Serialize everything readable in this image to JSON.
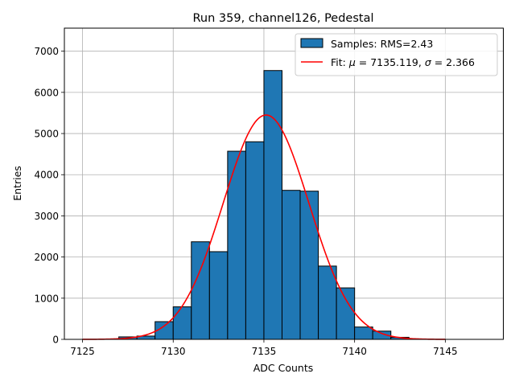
{
  "chart_data": {
    "type": "bar",
    "title": "Run 359, channel126, Pedestal",
    "xlabel": "ADC Counts",
    "ylabel": "Entries",
    "xlim": [
      7124,
      7148.2
    ],
    "ylim": [
      0,
      7560
    ],
    "xticks": [
      7125,
      7130,
      7135,
      7140,
      7145
    ],
    "yticks": [
      0,
      1000,
      2000,
      3000,
      4000,
      5000,
      6000,
      7000
    ],
    "grid": true,
    "legend_position": "top-right",
    "bins": [
      {
        "x0": 7127,
        "x1": 7128,
        "count": 60
      },
      {
        "x0": 7128,
        "x1": 7129,
        "count": 80
      },
      {
        "x0": 7129,
        "x1": 7130,
        "count": 430
      },
      {
        "x0": 7130,
        "x1": 7131,
        "count": 790
      },
      {
        "x0": 7131,
        "x1": 7132,
        "count": 2370
      },
      {
        "x0": 7132,
        "x1": 7133,
        "count": 2130
      },
      {
        "x0": 7133,
        "x1": 7134,
        "count": 4570
      },
      {
        "x0": 7134,
        "x1": 7135,
        "count": 4800
      },
      {
        "x0": 7135,
        "x1": 7136,
        "count": 6530
      },
      {
        "x0": 7136,
        "x1": 7137,
        "count": 3620
      },
      {
        "x0": 7137,
        "x1": 7138,
        "count": 3600
      },
      {
        "x0": 7138,
        "x1": 7139,
        "count": 1780
      },
      {
        "x0": 7139,
        "x1": 7140,
        "count": 1250
      },
      {
        "x0": 7140,
        "x1": 7141,
        "count": 300
      },
      {
        "x0": 7141,
        "x1": 7142,
        "count": 200
      },
      {
        "x0": 7142,
        "x1": 7143,
        "count": 50
      }
    ],
    "fit": {
      "mu": 7135.119,
      "sigma": 2.366,
      "amplitude": 5450,
      "x_range": [
        7125,
        7145
      ]
    },
    "series": [
      {
        "name": "Samples: RMS=2.43",
        "kind": "histogram",
        "color": "#1f77b4"
      },
      {
        "name": "Fit: μ = 7135.119, σ = 2.366",
        "kind": "line",
        "color": "#ff0000"
      }
    ],
    "legend": [
      {
        "label_prefix": "Samples: RMS=2.43"
      },
      {
        "label_prefix": "Fit: ",
        "mu_symbol": "μ",
        "mu_text": " = 7135.119, ",
        "sigma_symbol": "σ",
        "sigma_text": " = 2.366"
      }
    ]
  }
}
